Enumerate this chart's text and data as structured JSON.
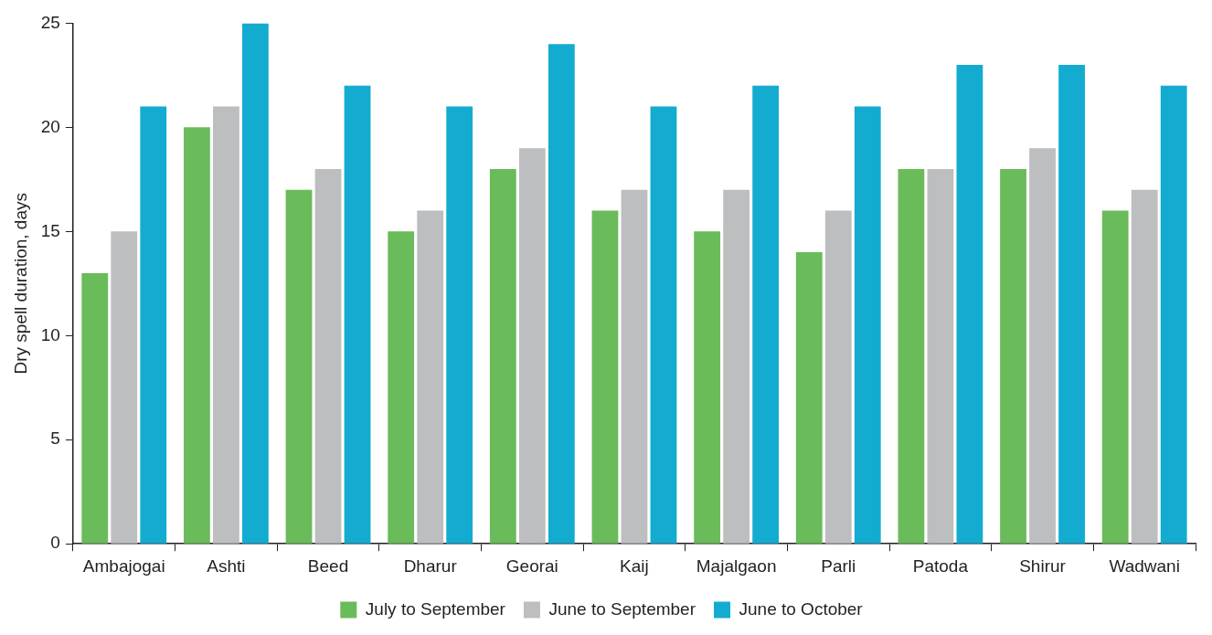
{
  "chart_data": {
    "type": "bar",
    "ylabel": "Dry spell duration, days",
    "categories": [
      "Ambajogai",
      "Ashti",
      "Beed",
      "Dharur",
      "Georai",
      "Kaij",
      "Majalgaon",
      "Parli",
      "Patoda",
      "Shirur",
      "Wadwani"
    ],
    "series": [
      {
        "name": "July to September",
        "color": "#6abb5a",
        "values": [
          13,
          20,
          17,
          15,
          18,
          16,
          15,
          14,
          18,
          18,
          16
        ]
      },
      {
        "name": "June to September",
        "color": "#bcbec0",
        "values": [
          15,
          21,
          18,
          16,
          19,
          17,
          17,
          16,
          18,
          19,
          17
        ]
      },
      {
        "name": "June to October",
        "color": "#13acd0",
        "values": [
          21,
          25,
          22,
          21,
          24,
          21,
          22,
          21,
          23,
          23,
          22
        ]
      }
    ],
    "ylim": [
      0,
      25
    ],
    "yticks": [
      0,
      5,
      10,
      15,
      20,
      25
    ],
    "grid": false,
    "legend": "bottom"
  }
}
